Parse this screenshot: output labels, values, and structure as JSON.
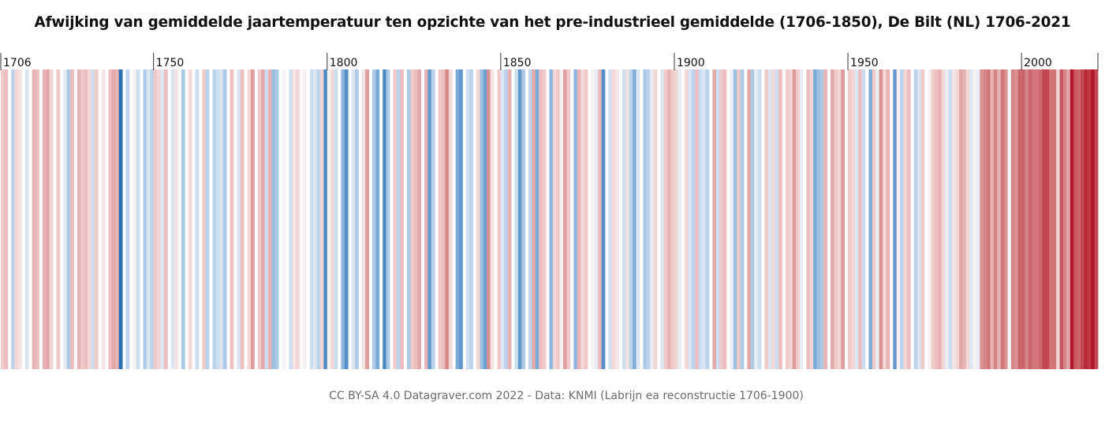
{
  "title": "Afwijking van gemiddelde jaartemperatuur ten opzichte van het pre-industrieel gemiddelde (1706-1850), De Bilt (NL) 1706-2021",
  "credit": "CC BY-SA 4.0 Datagraver.com 2022 - Data: KNMI (Labrijn ea reconstructie 1706-1900)",
  "chart_data": {
    "type": "heatmap",
    "subtype": "warming-stripes",
    "x_start": 1706,
    "x_end": 2021,
    "ticks": [
      1706,
      1750,
      1800,
      1850,
      1900,
      1950,
      2000
    ],
    "tick_labels": [
      "1706",
      "1750",
      "1800",
      "1850",
      "1900",
      "1950",
      "2000"
    ],
    "missing_years": [
      1708,
      1712,
      1714,
      1717,
      1721,
      1723,
      1727,
      1734,
      1736,
      1741,
      1743,
      1746,
      1754,
      1757,
      1759,
      1761,
      1763,
      1766,
      1771,
      1773,
      1776,
      1779,
      1786,
      1788,
      1792,
      1794,
      1803,
      1806,
      1809,
      1812,
      1815,
      1818,
      1822,
      1827,
      1831,
      1836,
      1839,
      1842,
      1848,
      1853,
      1857,
      1863,
      1870,
      1875,
      1880,
      1884,
      1890,
      1895,
      1902,
      1910,
      1915,
      1920,
      1925,
      1931,
      1937,
      1944,
      1949,
      1955,
      1962,
      1968,
      1972
    ],
    "anomaly_scale": [
      -1.6,
      1.6
    ],
    "colors": {
      "cold_strong": "#2166ac",
      "cold_mid": "#6fa3d4",
      "cold_light": "#d6e4f3",
      "neutral": "#f7f2f2",
      "warm_light": "#f2d0d0",
      "warm_mid": "#d8898a",
      "warm_strong": "#b2182b"
    },
    "anomalies": {
      "1706": 0.3,
      "1707": 0.4,
      "1709": -0.4,
      "1710": 0.2,
      "1711": 0.1,
      "1713": -0.2,
      "1715": 0.5,
      "1716": 0.4,
      "1718": 0.5,
      "1719": 0.6,
      "1720": 0.2,
      "1722": 0.3,
      "1724": -0.1,
      "1725": -0.5,
      "1726": 0.4,
      "1728": 0.5,
      "1729": 0.3,
      "1730": 0.4,
      "1731": 0.2,
      "1732": -0.3,
      "1733": 0.3,
      "1735": 0.1,
      "1737": 0.4,
      "1738": 0.6,
      "1739": 0.5,
      "1740": -1.5,
      "1742": -0.4,
      "1744": 0.0,
      "1745": -0.3,
      "1747": -0.5,
      "1748": -0.2,
      "1749": -0.4,
      "1750": 0.3,
      "1751": 0.2,
      "1752": -0.2,
      "1753": 0.4,
      "1755": -0.2,
      "1756": 0.1,
      "1758": -0.5,
      "1760": 0.2,
      "1762": -0.3,
      "1764": 0.3,
      "1765": -0.4,
      "1767": -0.4,
      "1768": -0.3,
      "1769": -0.2,
      "1770": -0.5,
      "1772": 0.4,
      "1774": -0.2,
      "1775": 0.4,
      "1777": 0.2,
      "1778": 0.7,
      "1780": 0.3,
      "1781": 0.6,
      "1782": -0.3,
      "1783": 0.5,
      "1784": -0.6,
      "1785": -0.5,
      "1787": 0.0,
      "1789": -0.3,
      "1790": 0.1,
      "1791": 0.2,
      "1793": 0.0,
      "1795": -0.3,
      "1796": -0.2,
      "1797": -0.4,
      "1798": 0.2,
      "1799": -1.2,
      "1800": 0.0,
      "1801": 0.2,
      "1802": -0.3,
      "1804": -0.7,
      "1805": -1.1,
      "1807": -0.2,
      "1808": -0.5,
      "1810": 0.1,
      "1811": 0.7,
      "1813": -0.5,
      "1814": -0.8,
      "1816": -1.2,
      "1817": -0.5,
      "1819": 0.3,
      "1820": -0.4,
      "1821": 0.4,
      "1823": -0.5,
      "1824": 0.3,
      "1825": 0.4,
      "1826": 0.6,
      "1828": 0.5,
      "1829": -1.0,
      "1830": -0.4,
      "1832": 0.3,
      "1833": 0.4,
      "1834": 0.9,
      "1835": 0.2,
      "1837": -0.8,
      "1838": -1.0,
      "1840": -0.3,
      "1841": -0.4,
      "1843": 0.2,
      "1844": -0.6,
      "1845": -0.9,
      "1846": 0.8,
      "1847": 0.1,
      "1849": 0.3,
      "1850": -0.2,
      "1851": -0.4,
      "1852": 0.5,
      "1854": -0.3,
      "1855": -1.0,
      "1856": -0.5,
      "1858": -0.4,
      "1859": 0.6,
      "1860": -0.8,
      "1861": 0.4,
      "1862": 0.3,
      "1864": -0.7,
      "1865": 0.2,
      "1866": 0.3,
      "1867": 0.0,
      "1868": 0.7,
      "1869": 0.3,
      "1871": -0.7,
      "1872": 0.5,
      "1873": 0.2,
      "1874": 0.3,
      "1876": 0.0,
      "1877": -0.1,
      "1878": 0.4,
      "1879": -1.1,
      "1881": -0.3,
      "1882": 0.2,
      "1883": 0.1,
      "1885": -0.3,
      "1886": 0.1,
      "1887": -0.4,
      "1888": -0.8,
      "1889": -0.2,
      "1891": -0.5,
      "1892": -0.4,
      "1893": -0.1,
      "1894": 0.2,
      "1896": -0.2,
      "1897": 0.3,
      "1898": 0.5,
      "1899": 0.3,
      "1900": 0.2,
      "1901": -0.1,
      "1903": 0.2,
      "1904": -0.2,
      "1905": -0.4,
      "1906": 0.4,
      "1907": -0.3,
      "1908": -0.2,
      "1909": -0.4,
      "1911": 0.6,
      "1912": -0.3,
      "1913": 0.3,
      "1914": 0.4,
      "1916": -0.1,
      "1917": -0.6,
      "1918": 0.3,
      "1919": -0.5,
      "1921": 0.6,
      "1922": -0.5,
      "1923": -0.1,
      "1924": -0.3,
      "1926": 0.3,
      "1927": -0.2,
      "1928": 0.2,
      "1929": -0.3,
      "1930": 0.4,
      "1932": 0.3,
      "1933": 0.2,
      "1934": 0.7,
      "1935": 0.3,
      "1936": -0.1,
      "1938": 0.4,
      "1939": 0.2,
      "1940": -0.8,
      "1941": -0.6,
      "1942": -0.5,
      "1943": 0.5,
      "1945": 0.6,
      "1946": 0.3,
      "1947": 0.2,
      "1948": 0.7,
      "1950": 0.3,
      "1951": 0.2,
      "1952": -0.2,
      "1953": 0.4,
      "1954": -0.3,
      "1956": -0.8,
      "1957": 0.3,
      "1958": -0.1,
      "1959": 0.8,
      "1960": 0.2,
      "1961": 0.5,
      "1963": -1.0,
      "1964": 0.0,
      "1965": -0.4,
      "1966": 0.2,
      "1967": 0.4,
      "1969": -0.4,
      "1970": -0.2,
      "1971": 0.3,
      "1973": 0.0,
      "1974": 0.3,
      "1975": 0.4,
      "1976": 0.5,
      "1977": 0.2,
      "1978": -0.1,
      "1979": -0.3,
      "1980": 0.1,
      "1981": 0.2,
      "1982": 0.6,
      "1983": 0.5,
      "1984": 0.2,
      "1985": -0.2,
      "1986": 0.0,
      "1987": -0.1,
      "1988": 0.8,
      "1989": 0.9,
      "1990": 1.0,
      "1991": 0.5,
      "1992": 0.9,
      "1993": 0.5,
      "1994": 1.0,
      "1995": 0.8,
      "1996": 0.0,
      "1997": 0.9,
      "1998": 0.8,
      "1999": 1.1,
      "2000": 1.1,
      "2001": 0.9,
      "2002": 1.1,
      "2003": 1.0,
      "2004": 1.0,
      "2005": 1.1,
      "2006": 1.3,
      "2007": 1.3,
      "2008": 1.0,
      "2009": 1.0,
      "2010": 0.2,
      "2011": 1.2,
      "2012": 0.9,
      "2013": 0.6,
      "2014": 1.6,
      "2015": 1.2,
      "2016": 1.1,
      "2017": 1.3,
      "2018": 1.5,
      "2019": 1.4,
      "2020": 1.6,
      "2021": 1.3
    }
  }
}
